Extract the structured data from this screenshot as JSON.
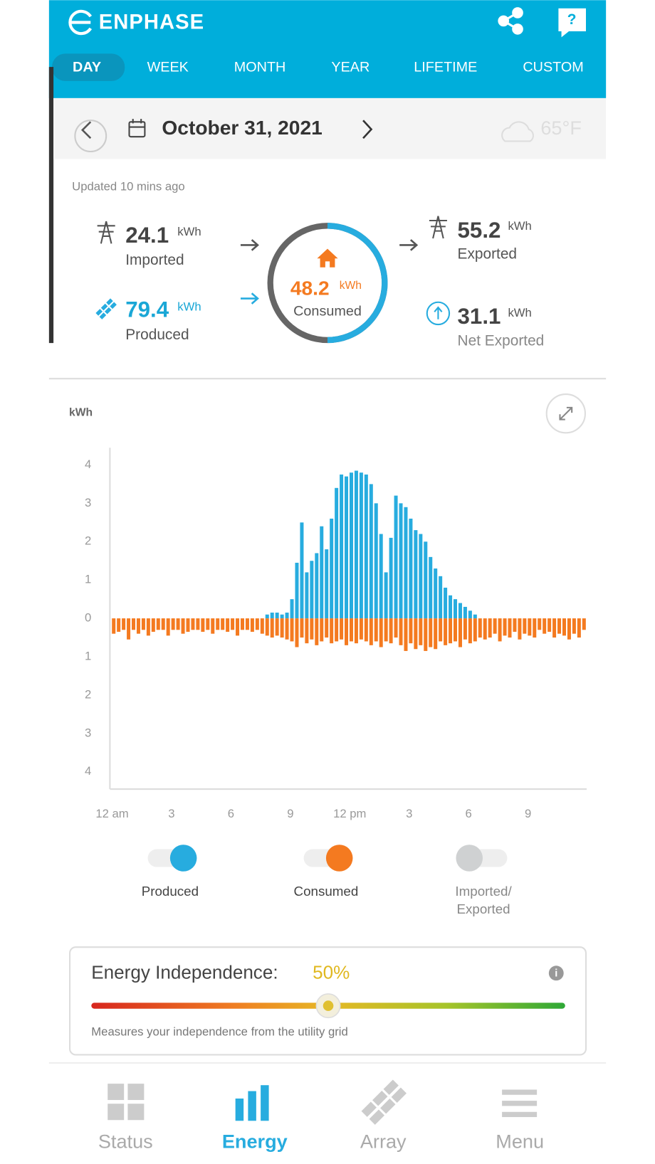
{
  "header": {
    "brand": "ENPHASE",
    "tabs": [
      "DAY",
      "WEEK",
      "MONTH",
      "YEAR",
      "LIFETIME",
      "CUSTOM"
    ],
    "active_tab": 0
  },
  "date_bar": {
    "date": "October 31, 2021",
    "weather": "65°F"
  },
  "summary": {
    "updated": "Updated 10 mins ago",
    "imported": {
      "value": 24.1,
      "unit": "kWh",
      "label": "Imported"
    },
    "produced": {
      "value": 79.4,
      "unit": "kWh",
      "label": "Produced"
    },
    "consumed": {
      "value": 48.2,
      "unit": "kWh",
      "label": "Consumed"
    },
    "exported": {
      "value": 55.2,
      "unit": "kWh",
      "label": "Exported"
    },
    "net_exported": {
      "value": 31.1,
      "unit": "kWh",
      "label": "Net Exported"
    }
  },
  "chart_data": {
    "type": "bar",
    "y_label": "kWh",
    "categories": [
      "12 am",
      null,
      null,
      null,
      null,
      null,
      null,
      null,
      null,
      null,
      null,
      null,
      "3",
      null,
      null,
      null,
      null,
      null,
      null,
      null,
      null,
      null,
      null,
      null,
      "6",
      null,
      null,
      null,
      null,
      null,
      null,
      null,
      null,
      null,
      null,
      null,
      "9",
      null,
      null,
      null,
      null,
      null,
      null,
      null,
      null,
      null,
      null,
      null,
      "12 pm",
      null,
      null,
      null,
      null,
      null,
      null,
      null,
      null,
      null,
      null,
      null,
      "3",
      null,
      null,
      null,
      null,
      null,
      null,
      null,
      null,
      null,
      null,
      null,
      "6",
      null,
      null,
      null,
      null,
      null,
      null,
      null,
      null,
      null,
      null,
      null,
      "9",
      null,
      null,
      null,
      null,
      null,
      null,
      null,
      null,
      null,
      null,
      null
    ],
    "series": [
      {
        "name": "Produced",
        "color": "#27acdf",
        "values": [
          0,
          0,
          0,
          0,
          0,
          0,
          0,
          0,
          0,
          0,
          0,
          0,
          0,
          0,
          0,
          0,
          0,
          0,
          0,
          0,
          0,
          0,
          0,
          0,
          0,
          0,
          0,
          0,
          0,
          0,
          0,
          0.1,
          0.15,
          0.15,
          0.1,
          0.15,
          0.5,
          1.45,
          2.5,
          1.2,
          1.5,
          1.7,
          2.4,
          1.8,
          2.6,
          3.4,
          3.75,
          3.7,
          3.8,
          3.85,
          3.8,
          3.75,
          3.5,
          3.0,
          2.2,
          1.2,
          2.1,
          3.2,
          3.0,
          2.9,
          2.6,
          2.3,
          2.2,
          2.0,
          1.6,
          1.3,
          1.1,
          0.8,
          0.6,
          0.5,
          0.4,
          0.3,
          0.2,
          0.1,
          0,
          0,
          0,
          0,
          0,
          0,
          0,
          0,
          0,
          0,
          0,
          0,
          0,
          0,
          0,
          0,
          0,
          0,
          0,
          0,
          0,
          0
        ]
      },
      {
        "name": "Consumed",
        "color": "#f47a20",
        "values": [
          -0.4,
          -0.35,
          -0.3,
          -0.55,
          -0.3,
          -0.4,
          -0.3,
          -0.45,
          -0.35,
          -0.3,
          -0.3,
          -0.45,
          -0.3,
          -0.3,
          -0.4,
          -0.35,
          -0.3,
          -0.3,
          -0.35,
          -0.3,
          -0.4,
          -0.3,
          -0.3,
          -0.35,
          -0.3,
          -0.45,
          -0.3,
          -0.3,
          -0.35,
          -0.3,
          -0.4,
          -0.45,
          -0.5,
          -0.45,
          -0.5,
          -0.55,
          -0.6,
          -0.75,
          -0.5,
          -0.65,
          -0.55,
          -0.7,
          -0.6,
          -0.5,
          -0.65,
          -0.6,
          -0.55,
          -0.7,
          -0.6,
          -0.65,
          -0.55,
          -0.6,
          -0.7,
          -0.6,
          -0.75,
          -0.6,
          -0.65,
          -0.5,
          -0.7,
          -0.85,
          -0.65,
          -0.8,
          -0.7,
          -0.85,
          -0.75,
          -0.8,
          -0.6,
          -0.7,
          -0.65,
          -0.6,
          -0.75,
          -0.55,
          -0.65,
          -0.6,
          -0.5,
          -0.55,
          -0.5,
          -0.4,
          -0.6,
          -0.45,
          -0.5,
          -0.35,
          -0.55,
          -0.4,
          -0.45,
          -0.5,
          -0.3,
          -0.4,
          -0.35,
          -0.5,
          -0.4,
          -0.45,
          -0.55,
          -0.4,
          -0.5,
          -0.3
        ]
      }
    ],
    "hidden_series": [
      {
        "lines": [
          "Imported/",
          "Exported"
        ],
        "color": "#cfd1d2"
      }
    ],
    "ylim": [
      -4.45,
      4.45
    ],
    "yticks": [
      4,
      3,
      2,
      1,
      0,
      {
        "value": -1,
        "label": "1"
      },
      {
        "value": -2,
        "label": "2"
      },
      {
        "value": -3,
        "label": "3"
      },
      {
        "value": -4,
        "label": "4"
      }
    ],
    "grid": false
  },
  "energy_independence": {
    "title": "Energy Independence:",
    "value": 50,
    "value_label": "50%",
    "description": "Measures your independence from the utility grid"
  },
  "nav": {
    "items": [
      "Status",
      "Energy",
      "Array",
      "Menu"
    ],
    "active": 1
  }
}
